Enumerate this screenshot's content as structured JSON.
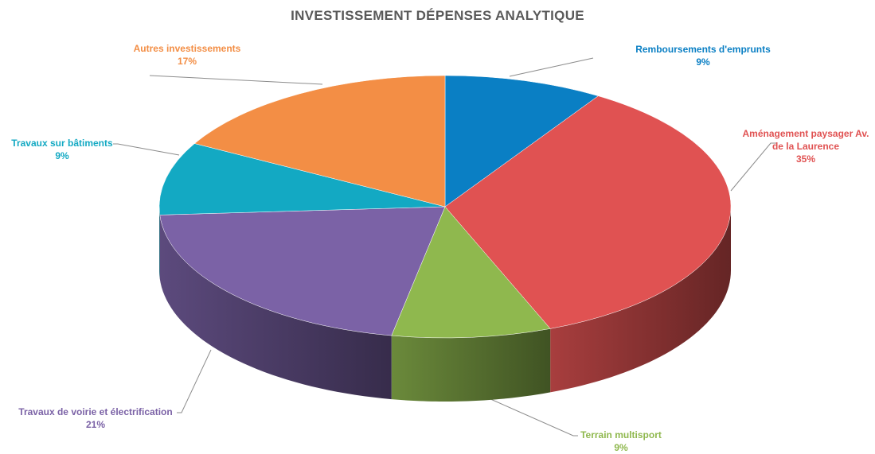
{
  "chart_data": {
    "type": "pie3d",
    "title": "INVESTISSEMENT DÉPENSES ANALYTIQUE",
    "categories": [
      "Remboursements d'emprunts",
      "Aménagement paysager Av. de la Laurence",
      "Terrain multisport",
      "Travaux de voirie et électrification",
      "Travaux sur bâtiments",
      "Autres investissements"
    ],
    "values": [
      9,
      35,
      9,
      21,
      9,
      17
    ],
    "value_labels": [
      "9%",
      "35%",
      "9%",
      "21%",
      "9%",
      "17%"
    ],
    "colors": [
      "#0a7fc4",
      "#e05252",
      "#8fb84e",
      "#7b62a6",
      "#13a9c3",
      "#f38e45"
    ]
  }
}
